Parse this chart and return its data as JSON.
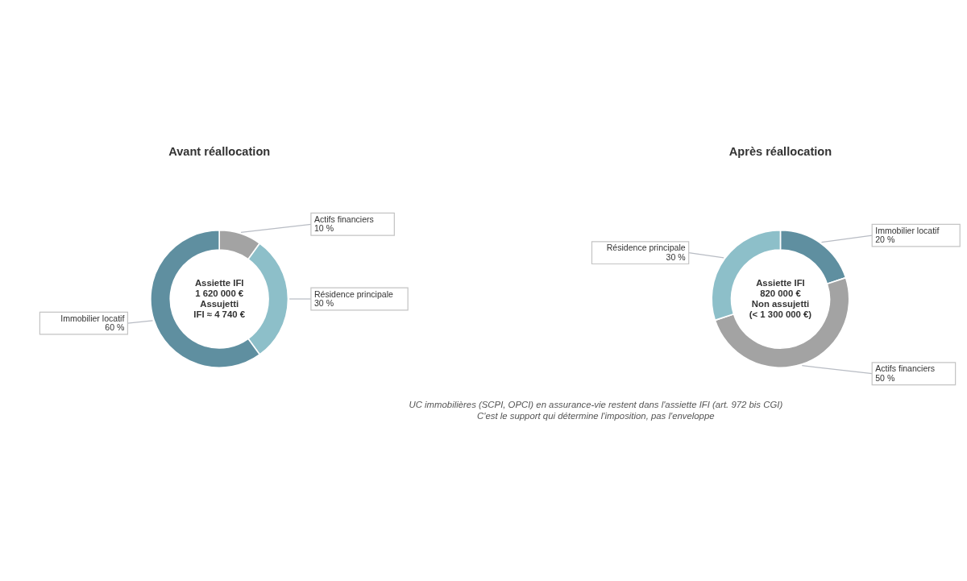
{
  "chart_data": [
    {
      "type": "donut",
      "title": "Avant réallocation",
      "categories": [
        "Actifs financiers",
        "Résidence principale",
        "Immobilier locatif"
      ],
      "values": [
        10,
        30,
        60
      ],
      "colors": [
        "#a3a3a3",
        "#8dbfc9",
        "#5f8fa0"
      ],
      "value_labels": [
        "10 %",
        "30 %",
        "60 %"
      ],
      "legend": false,
      "annotations": [
        "Assiette IFI\n1 620 000 €\nAssujetti\nIFI ≈ 4 740 €"
      ]
    },
    {
      "type": "donut",
      "title": "Après réallocation",
      "categories": [
        "Immobilier locatif",
        "Actifs financiers",
        "Résidence principale"
      ],
      "values": [
        20,
        50,
        30
      ],
      "colors": [
        "#5f8fa0",
        "#a3a3a3",
        "#8dbfc9"
      ],
      "value_labels": [
        "20 %",
        "50 %",
        "30 %"
      ],
      "legend": false,
      "annotations": [
        "Assiette IFI\n820 000 €\nNon assujetti\n(< 1 300 000 €)",
        "UC immobilières (SCPI, OPCI) en assurance-vie restent dans l'assiette IFI (art. 972 bis CGI)\nC'est le support qui détermine l'imposition, pas l'enveloppe"
      ]
    }
  ]
}
